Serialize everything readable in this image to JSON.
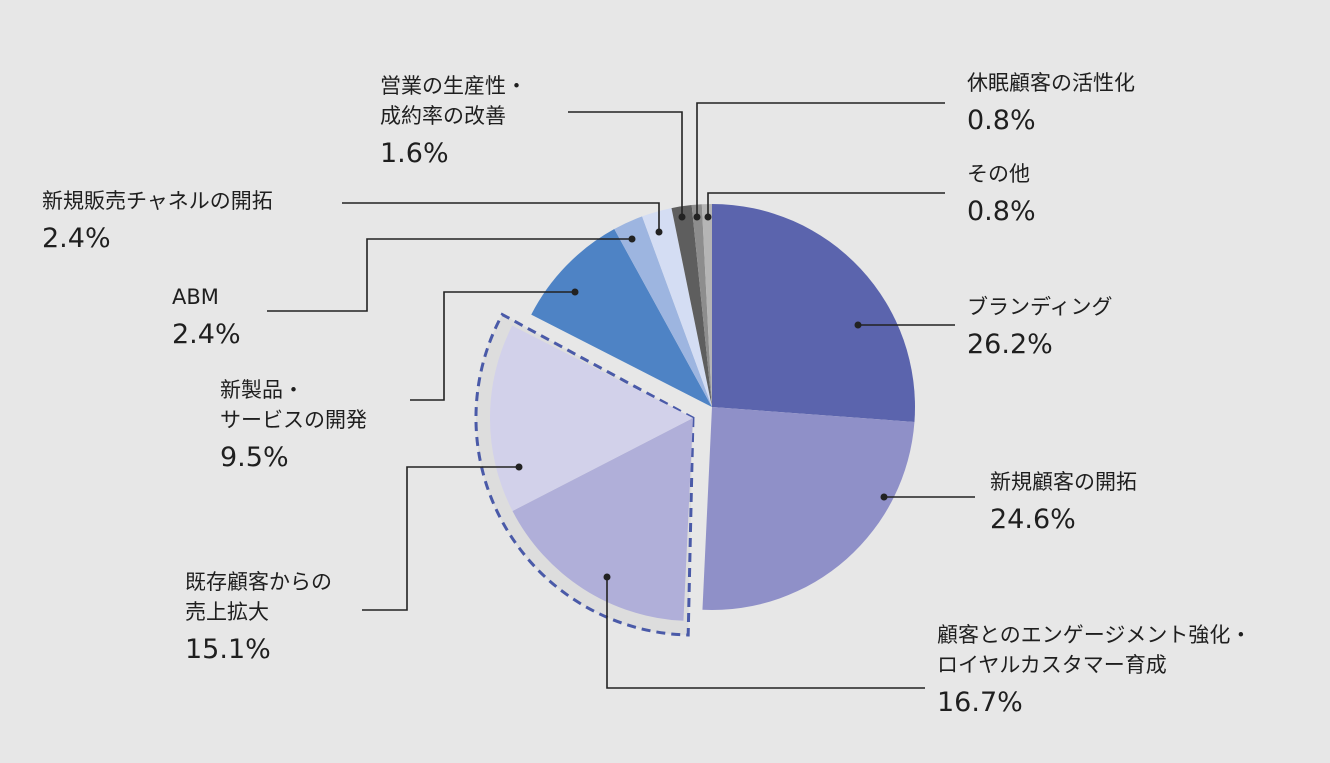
{
  "chart_data": {
    "type": "pie",
    "slices": [
      {
        "key": "branding",
        "label": "ブランディング",
        "value": 26.2,
        "value_label": "26.2%",
        "color": "#5b64ad"
      },
      {
        "key": "new_customers",
        "label": "新規顧客の開拓",
        "value": 24.6,
        "value_label": "24.6%",
        "color": "#8f90c8"
      },
      {
        "key": "engagement",
        "label": "顧客とのエンゲージメント強化・\nロイヤルカスタマー育成",
        "value": 16.7,
        "value_label": "16.7%",
        "color": "#b0afd9"
      },
      {
        "key": "existing_sales",
        "label": "既存顧客からの\n売上拡大",
        "value": 15.1,
        "value_label": "15.1%",
        "color": "#d2d1ea"
      },
      {
        "key": "new_products",
        "label": "新製品・\nサービスの開発",
        "value": 9.5,
        "value_label": "9.5%",
        "color": "#4e83c5"
      },
      {
        "key": "abm",
        "label": "ABM",
        "value": 2.4,
        "value_label": "2.4%",
        "color": "#9db5e0"
      },
      {
        "key": "new_channels",
        "label": "新規販売チャネルの開拓",
        "value": 2.4,
        "value_label": "2.4%",
        "color": "#d4ddf3"
      },
      {
        "key": "sales_productivity",
        "label": "営業の生産性・\n成約率の改善",
        "value": 1.6,
        "value_label": "1.6%",
        "color": "#5e5e5e"
      },
      {
        "key": "dormant",
        "label": "休眠顧客の活性化",
        "value": 0.8,
        "value_label": "0.8%",
        "color": "#8d8d8d"
      },
      {
        "key": "other",
        "label": "その他",
        "value": 0.8,
        "value_label": "0.8%",
        "color": "#b5b5b5"
      }
    ],
    "highlighted_group": [
      "engagement",
      "existing_sales"
    ],
    "highlight_style": "dashed-outline",
    "highlight_color": "#4a5aa8",
    "legend": "none (callout labels)"
  }
}
